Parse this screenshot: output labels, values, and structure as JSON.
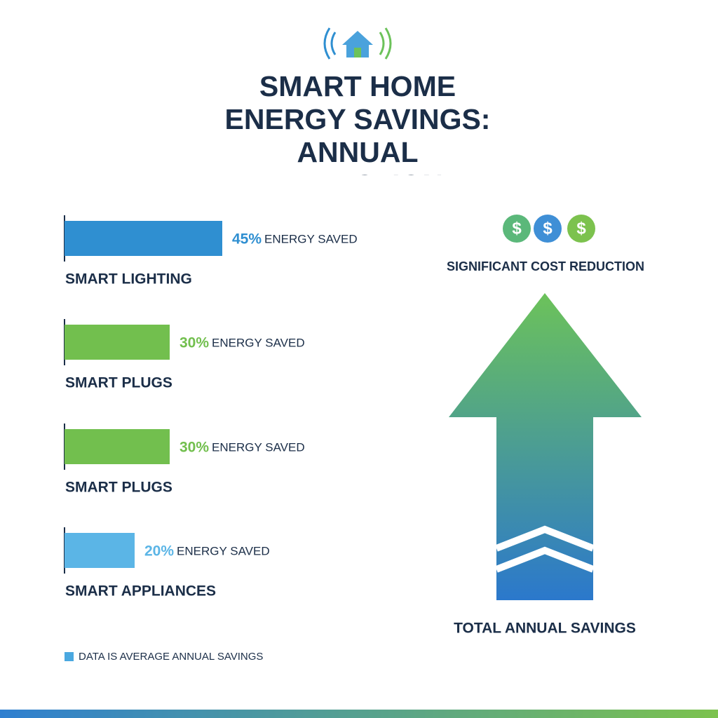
{
  "chart_data": {
    "type": "bar",
    "orientation": "horizontal",
    "title": "SMART HOME ENERGY SAVINGS: ANNUAL REDUCTION",
    "categories": [
      "SMART LIGHTING",
      "SMART PLUGS",
      "SMART PLUGS",
      "SMART APPLIANCES"
    ],
    "values": [
      45,
      30,
      30,
      20
    ],
    "value_labels": [
      "45%",
      "30%",
      "30%",
      "20%"
    ],
    "value_caption": "ENERGY SAVED",
    "colors": [
      "#2f8fd1",
      "#72bf4e",
      "#72bf4e",
      "#5bb5e6"
    ],
    "note": "DATA IS AVERAGE ANNUAL SAVINGS",
    "note_color": "#4aa8e0",
    "cost_symbol": "$",
    "cost_caption": "SIGNIFICANT COST REDUCTION",
    "arrow_caption": "TOTAL ANNUAL SAVINGS"
  }
}
